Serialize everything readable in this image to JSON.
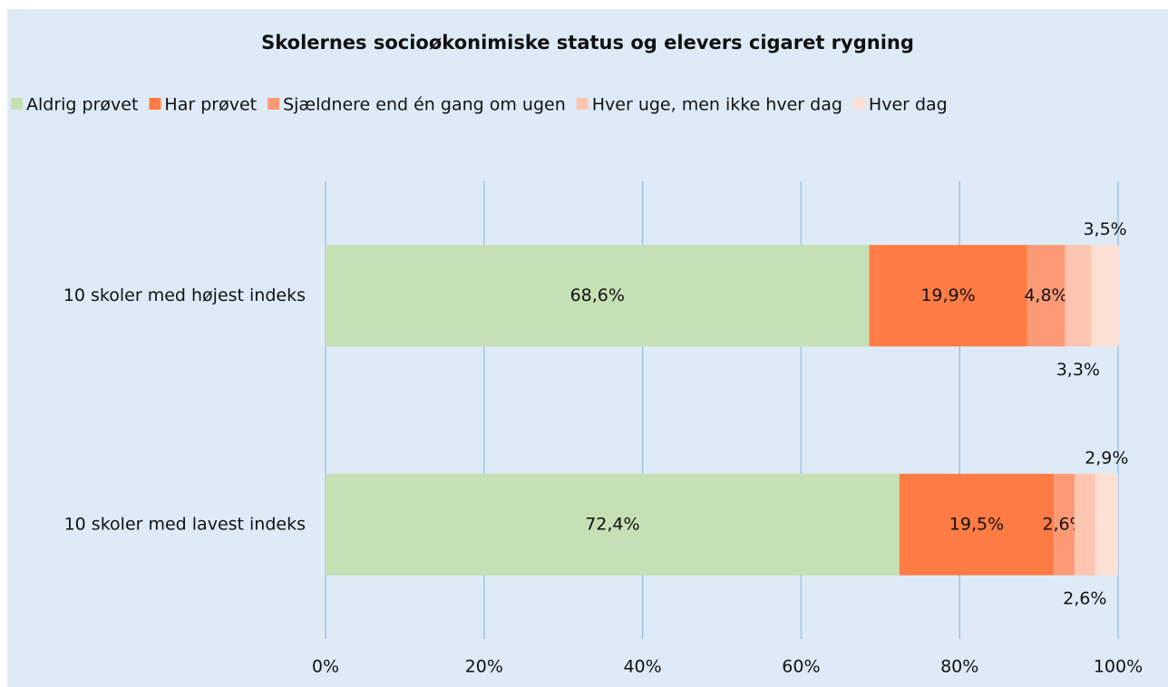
{
  "chart_data": {
    "type": "stacked-barh",
    "title": "Skolernes socioøkonimiske status og elevers cigaret rygning",
    "categories": [
      "10 skoler med højest indeks",
      "10 skoler med lavest indeks"
    ],
    "series": [
      {
        "name": "Aldrig prøvet",
        "color": "#c5e0b4",
        "values": [
          68.6,
          72.4
        ],
        "value_labels": [
          "68,6%",
          "72,4%"
        ]
      },
      {
        "name": "Har prøvet",
        "color": "#ff7c45",
        "values": [
          19.9,
          19.5
        ],
        "value_labels": [
          "19,9%",
          "19,5%"
        ]
      },
      {
        "name": "Sjældnere end én gang om ugen",
        "color": "#fd9a76",
        "values": [
          4.8,
          2.6
        ],
        "value_labels": [
          "4,8%",
          "2,6%"
        ]
      },
      {
        "name": "Hver uge, men ikke hver dag",
        "color": "#fec5b1",
        "values": [
          3.3,
          2.6
        ],
        "value_labels": [
          "3,3%",
          "2,6%"
        ]
      },
      {
        "name": "Hver dag",
        "color": "#fee0d5",
        "values": [
          3.5,
          2.9
        ],
        "value_labels": [
          "3,5%",
          "2,9%"
        ]
      }
    ],
    "xlim": [
      0,
      100
    ],
    "xticks": [
      {
        "value": 0,
        "label": "0%"
      },
      {
        "value": 20,
        "label": "20%"
      },
      {
        "value": 40,
        "label": "40%"
      },
      {
        "value": 60,
        "label": "60%"
      },
      {
        "value": 80,
        "label": "80%"
      },
      {
        "value": 100,
        "label": "100%"
      }
    ],
    "grid": true,
    "legend": "top"
  }
}
